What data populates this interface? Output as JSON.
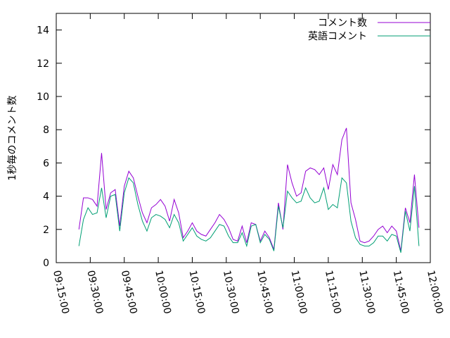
{
  "chart_data": {
    "type": "line",
    "ylabel": "1秒毎のコメント数",
    "x": [
      "09:25:00",
      "09:27:00",
      "09:29:00",
      "09:31:00",
      "09:33:00",
      "09:35:00",
      "09:37:00",
      "09:39:00",
      "09:41:00",
      "09:43:00",
      "09:45:00",
      "09:47:00",
      "09:49:00",
      "09:51:00",
      "09:53:00",
      "09:55:00",
      "09:57:00",
      "09:59:00",
      "10:01:00",
      "10:03:00",
      "10:05:00",
      "10:07:00",
      "10:09:00",
      "10:11:00",
      "10:13:00",
      "10:15:00",
      "10:17:00",
      "10:19:00",
      "10:21:00",
      "10:23:00",
      "10:25:00",
      "10:27:00",
      "10:29:00",
      "10:31:00",
      "10:33:00",
      "10:35:00",
      "10:37:00",
      "10:39:00",
      "10:41:00",
      "10:43:00",
      "10:45:00",
      "10:47:00",
      "10:49:00",
      "10:51:00",
      "10:53:00",
      "10:55:00",
      "10:57:00",
      "10:59:00",
      "11:01:00",
      "11:03:00",
      "11:05:00",
      "11:07:00",
      "11:09:00",
      "11:11:00",
      "11:13:00",
      "11:15:00",
      "11:17:00",
      "11:19:00",
      "11:21:00",
      "11:23:00",
      "11:25:00",
      "11:27:00",
      "11:29:00",
      "11:31:00",
      "11:33:00",
      "11:35:00",
      "11:37:00",
      "11:39:00",
      "11:41:00",
      "11:43:00",
      "11:45:00",
      "11:47:00",
      "11:49:00",
      "11:51:00",
      "11:53:00",
      "11:55:00"
    ],
    "series": [
      {
        "name": "コメント数",
        "color": "#9400d3",
        "values": [
          2.0,
          3.9,
          3.9,
          3.8,
          3.4,
          6.6,
          3.2,
          4.2,
          4.4,
          2.2,
          4.6,
          5.5,
          5.1,
          4.0,
          3.0,
          2.4,
          3.3,
          3.5,
          3.8,
          3.4,
          2.5,
          3.8,
          3.0,
          1.5,
          1.9,
          2.4,
          1.9,
          1.7,
          1.6,
          2.0,
          2.4,
          2.9,
          2.6,
          2.1,
          1.4,
          1.3,
          2.2,
          1.2,
          2.4,
          2.3,
          1.3,
          1.9,
          1.5,
          0.8,
          3.6,
          2.0,
          5.9,
          4.8,
          4.0,
          4.2,
          5.5,
          5.7,
          5.6,
          5.3,
          5.7,
          4.4,
          5.9,
          5.3,
          7.4,
          8.1,
          3.6,
          2.6,
          1.3,
          1.2,
          1.3,
          1.6,
          2.0,
          2.2,
          1.8,
          2.2,
          1.9,
          0.7,
          3.3,
          2.4,
          5.3,
          2.1
        ]
      },
      {
        "name": "英語コメント",
        "color": "#009e73",
        "values": [
          1.0,
          2.6,
          3.3,
          2.9,
          3.0,
          4.5,
          2.7,
          4.0,
          4.1,
          1.9,
          4.2,
          5.1,
          4.8,
          3.5,
          2.5,
          1.9,
          2.7,
          2.9,
          2.8,
          2.6,
          2.1,
          2.9,
          2.4,
          1.3,
          1.7,
          2.1,
          1.6,
          1.4,
          1.3,
          1.5,
          1.9,
          2.3,
          2.2,
          1.6,
          1.2,
          1.2,
          1.8,
          1.0,
          2.2,
          2.3,
          1.2,
          1.7,
          1.4,
          0.7,
          3.4,
          2.1,
          4.3,
          3.9,
          3.6,
          3.7,
          4.5,
          3.9,
          3.6,
          3.7,
          4.5,
          3.2,
          3.5,
          3.3,
          5.1,
          4.8,
          2.5,
          1.5,
          1.1,
          1.0,
          1.0,
          1.2,
          1.6,
          1.6,
          1.3,
          1.7,
          1.6,
          0.6,
          3.1,
          1.9,
          4.6,
          1.0
        ]
      }
    ],
    "xlim": [
      "09:15:00",
      "12:00:00"
    ],
    "xticks": [
      "09:15:00",
      "09:30:00",
      "09:45:00",
      "10:00:00",
      "10:15:00",
      "10:30:00",
      "10:45:00",
      "11:00:00",
      "11:15:00",
      "11:30:00",
      "11:45:00",
      "12:00:00"
    ],
    "ylim": [
      0,
      15
    ],
    "yticks": [
      0,
      2,
      4,
      6,
      8,
      10,
      12,
      14
    ],
    "legend": "upper right"
  }
}
